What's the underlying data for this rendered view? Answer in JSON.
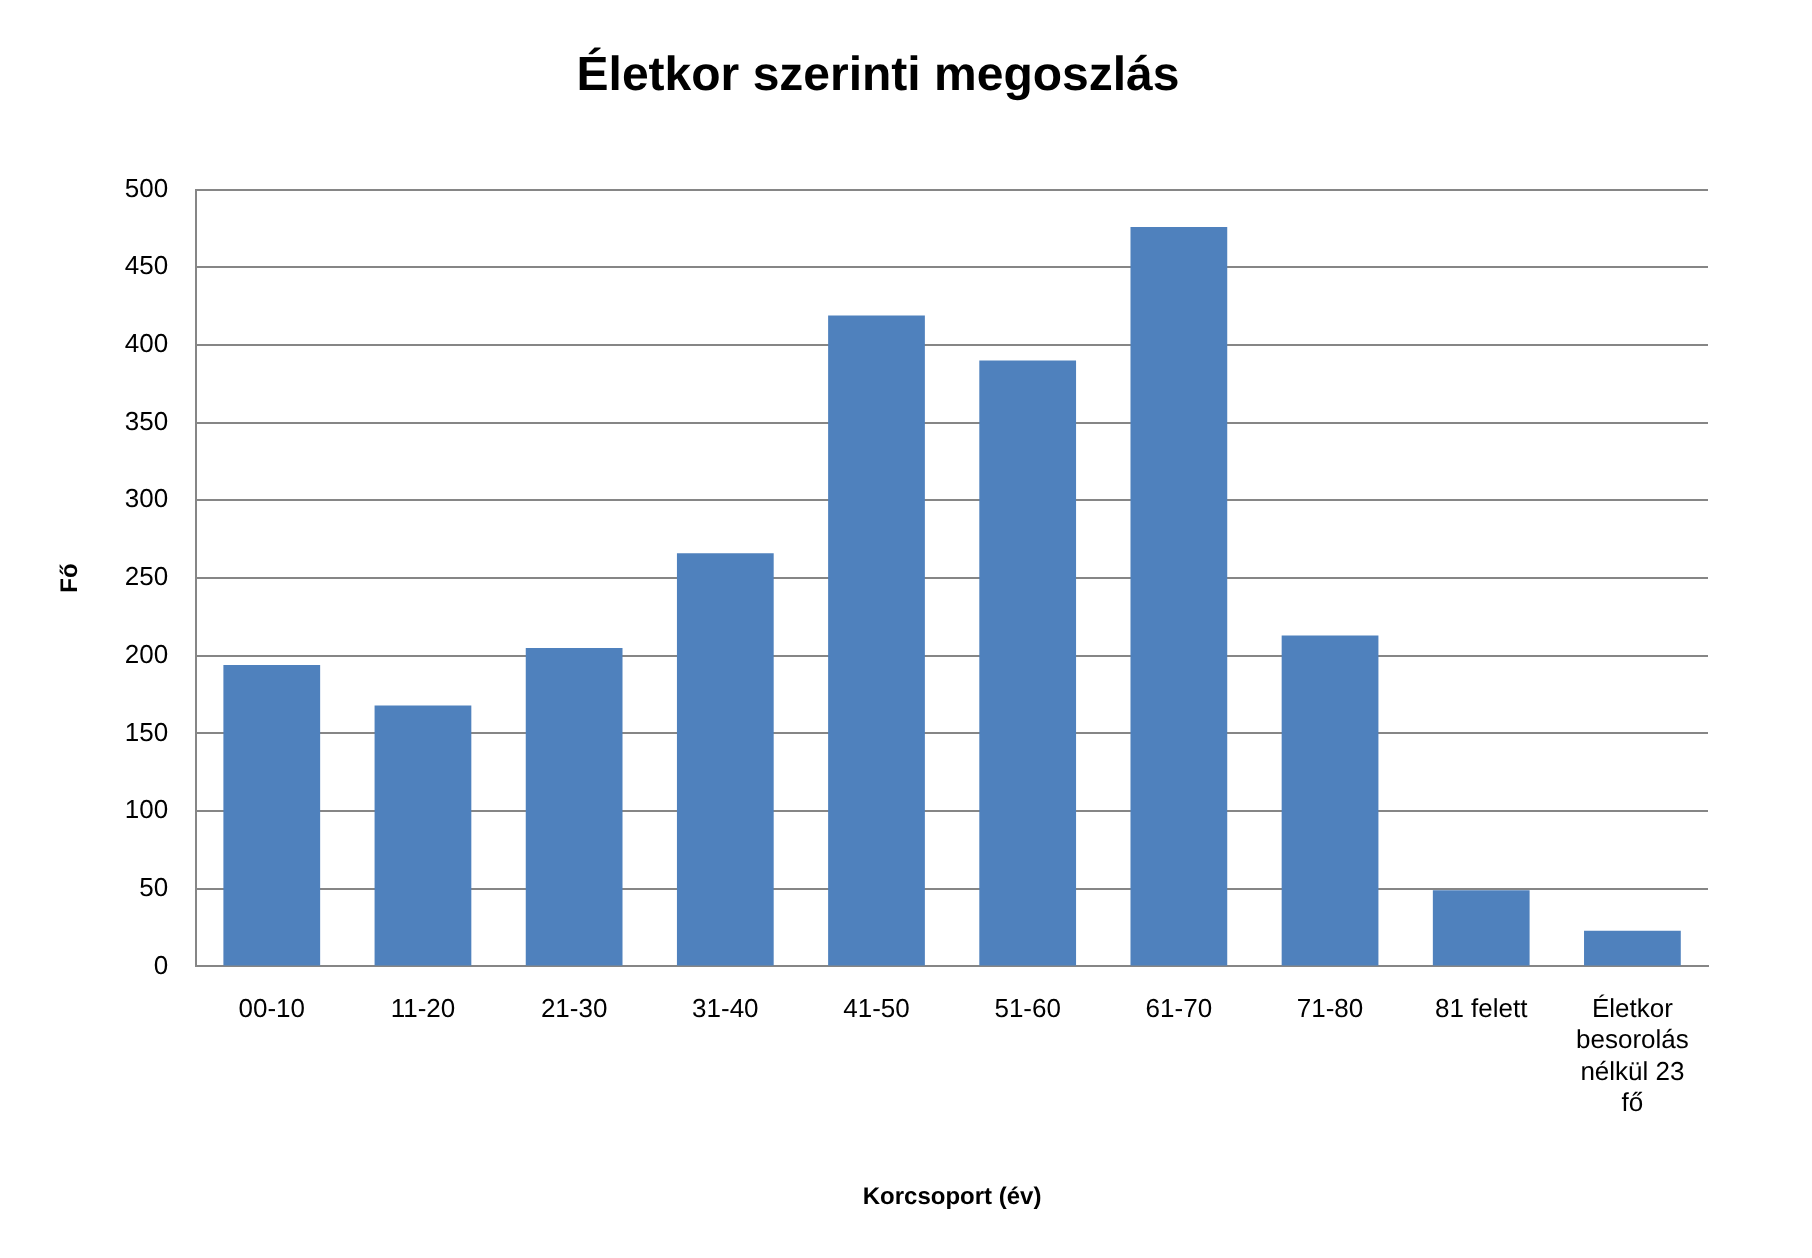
{
  "chart_data": {
    "type": "bar",
    "title": "Életkor szerinti megoszlás",
    "xlabel": "Korcsoport (év)",
    "ylabel": "Fő",
    "categories": [
      "00-10",
      "11-20",
      "21-30",
      "31-40",
      "41-50",
      "51-60",
      "61-70",
      "71-80",
      "81 felett",
      "Életkor besorolás nélkül 23 fő"
    ],
    "values": [
      194,
      168,
      205,
      266,
      419,
      390,
      476,
      213,
      49,
      23
    ],
    "color": "#4f81bd",
    "ylim": [
      0,
      500
    ],
    "yticks": [
      0,
      50,
      100,
      150,
      200,
      250,
      300,
      350,
      400,
      450,
      500
    ],
    "grid": "y",
    "legend": false
  }
}
